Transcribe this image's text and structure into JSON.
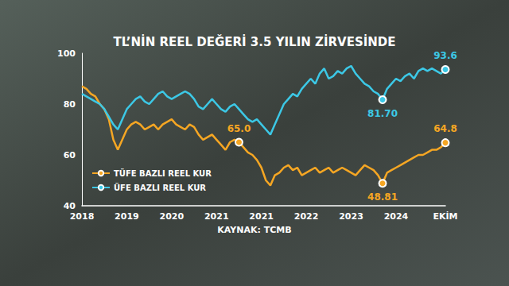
{
  "chart_data": {
    "type": "line",
    "title": "TL’NİN REEL DEĞERİ 3.5 YILIN ZİRVESİNDE",
    "source": "KAYNAK: TCMB",
    "categories": [
      "2018",
      null,
      null,
      null,
      null,
      null,
      null,
      null,
      null,
      null,
      "2019",
      null,
      null,
      null,
      null,
      null,
      null,
      null,
      null,
      null,
      "2020",
      null,
      null,
      null,
      null,
      null,
      null,
      null,
      null,
      null,
      "2021",
      null,
      null,
      null,
      null,
      null,
      null,
      null,
      null,
      null,
      "2021",
      null,
      null,
      null,
      null,
      null,
      null,
      null,
      null,
      null,
      "2022",
      null,
      null,
      null,
      null,
      null,
      null,
      null,
      null,
      null,
      "2023",
      null,
      null,
      null,
      null,
      null,
      null,
      null,
      null,
      null,
      "2024",
      null,
      null,
      null,
      null,
      null,
      null,
      null,
      null,
      null,
      null,
      "EKİM"
    ],
    "series": [
      {
        "name": "TÜFE BAZLI REEL KUR",
        "color": "#f5a623",
        "values": [
          87,
          86,
          84,
          83,
          80,
          78,
          74,
          66,
          62,
          66,
          70,
          72,
          73,
          72,
          70,
          71,
          72,
          70,
          72,
          73,
          74,
          72,
          71,
          70,
          72,
          71,
          68,
          66,
          67,
          68,
          66,
          64,
          62,
          65,
          66,
          65,
          63,
          61,
          60,
          58,
          55,
          50,
          48,
          52,
          53,
          55,
          56,
          54,
          55,
          52,
          53,
          54,
          55,
          53,
          54,
          55,
          53,
          54,
          55,
          54,
          53,
          52,
          54,
          56,
          55,
          54,
          52,
          48.81,
          53,
          54,
          55,
          56,
          57,
          58,
          59,
          60,
          60,
          61,
          62,
          62,
          63,
          64.8
        ],
        "value_labels": [
          null,
          null,
          null,
          null,
          null,
          null,
          null,
          null,
          null,
          null,
          null,
          null,
          null,
          null,
          null,
          null,
          null,
          null,
          null,
          null,
          null,
          null,
          null,
          null,
          null,
          null,
          null,
          null,
          null,
          null,
          null,
          null,
          null,
          null,
          null,
          "65.0",
          null,
          null,
          null,
          null,
          null,
          null,
          null,
          null,
          null,
          null,
          null,
          null,
          null,
          null,
          null,
          null,
          null,
          null,
          null,
          null,
          null,
          null,
          null,
          null,
          null,
          null,
          null,
          null,
          null,
          null,
          null,
          "48.81",
          null,
          null,
          null,
          null,
          null,
          null,
          null,
          null,
          null,
          null,
          null,
          null,
          null,
          "64.8"
        ]
      },
      {
        "name": "ÜFE BAZLI REEL KUR",
        "color": "#3cc8e6",
        "values": [
          84,
          83,
          82,
          81,
          80,
          78,
          75,
          72,
          70,
          74,
          78,
          80,
          82,
          83,
          81,
          80,
          82,
          84,
          85,
          83,
          82,
          83,
          84,
          85,
          84,
          82,
          79,
          78,
          80,
          82,
          80,
          78,
          77,
          79,
          80,
          78,
          76,
          74,
          73,
          74,
          72,
          70,
          68,
          72,
          76,
          80,
          82,
          84,
          83,
          86,
          88,
          90,
          88,
          92,
          94,
          90,
          91,
          93,
          92,
          94,
          95,
          92,
          90,
          88,
          87,
          85,
          84,
          81.7,
          86,
          88,
          90,
          89,
          91,
          92,
          90,
          93,
          94,
          93,
          94,
          93,
          92,
          93.6
        ],
        "value_labels": [
          null,
          null,
          null,
          null,
          null,
          null,
          null,
          null,
          null,
          null,
          null,
          null,
          null,
          null,
          null,
          null,
          null,
          null,
          null,
          null,
          null,
          null,
          null,
          null,
          null,
          null,
          null,
          null,
          null,
          null,
          null,
          null,
          null,
          null,
          null,
          null,
          null,
          null,
          null,
          null,
          null,
          null,
          null,
          null,
          null,
          null,
          null,
          null,
          null,
          null,
          null,
          null,
          null,
          null,
          null,
          null,
          null,
          null,
          null,
          null,
          null,
          null,
          null,
          null,
          null,
          null,
          null,
          "81.70",
          null,
          null,
          null,
          null,
          null,
          null,
          null,
          null,
          null,
          null,
          null,
          null,
          null,
          "93.6"
        ]
      }
    ],
    "ylim": [
      40,
      100
    ],
    "yticks": [
      40,
      60,
      80,
      100
    ],
    "grid": false,
    "legend": "lower left"
  }
}
